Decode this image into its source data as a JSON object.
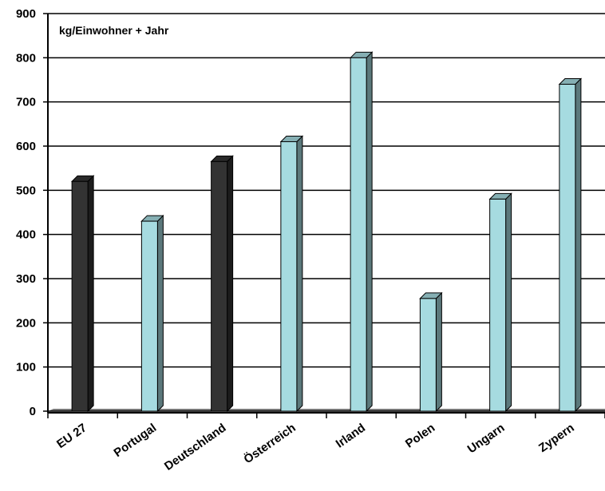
{
  "chart_data": {
    "type": "bar",
    "title": "",
    "unit_label": "kg/Einwohner + Jahr",
    "xlabel": "",
    "ylabel": "",
    "ylim": [
      0,
      900
    ],
    "yticks": [
      0,
      100,
      200,
      300,
      400,
      500,
      600,
      700,
      800,
      900
    ],
    "grid": true,
    "style": "3d",
    "categories": [
      "EU 27",
      "Portugal",
      "Deutschland",
      "Österreich",
      "Irland",
      "Polen",
      "Ungarn",
      "Zypern"
    ],
    "values": [
      520,
      430,
      565,
      610,
      800,
      255,
      480,
      740
    ],
    "bar_colors": [
      "#333333",
      "#a6dbe0",
      "#333333",
      "#a6dbe0",
      "#a6dbe0",
      "#a6dbe0",
      "#a6dbe0",
      "#a6dbe0"
    ]
  }
}
